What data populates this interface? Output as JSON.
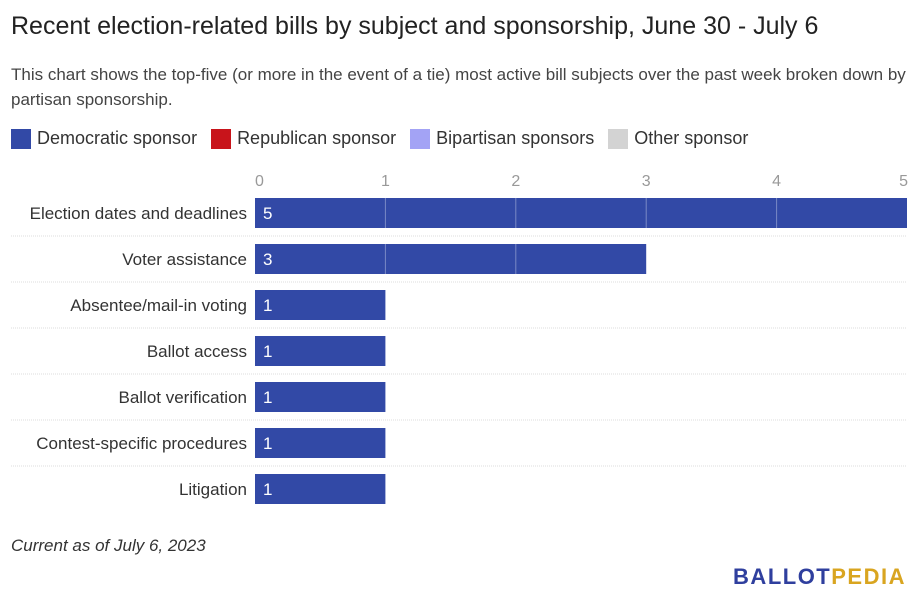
{
  "title": "Recent election-related bills by subject and sponsorship, June 30 - July 6",
  "subtitle": "This chart shows the top-five (or more in the event of a tie) most active bill subjects over the past week broken down by partisan sponsorship.",
  "legend": [
    {
      "label": "Democratic sponsor",
      "color": "#3249a6"
    },
    {
      "label": "Republican sponsor",
      "color": "#c8141b"
    },
    {
      "label": "Bipartisan sponsors",
      "color": "#a3a3f5"
    },
    {
      "label": "Other sponsor",
      "color": "#d3d3d3"
    }
  ],
  "note": "Current as of July 6, 2023",
  "logo": {
    "part1": "BALLOT",
    "part2": "PEDIA"
  },
  "chart_data": {
    "type": "bar",
    "orientation": "horizontal",
    "stacked": true,
    "categories": [
      "Election dates and deadlines",
      "Voter assistance",
      "Absentee/mail-in voting",
      "Ballot access",
      "Ballot verification",
      "Contest-specific procedures",
      "Litigation"
    ],
    "series": [
      {
        "name": "Democratic sponsor",
        "color": "#3249a6",
        "values": [
          5,
          3,
          1,
          1,
          1,
          1,
          1
        ]
      },
      {
        "name": "Republican sponsor",
        "color": "#c8141b",
        "values": [
          0,
          0,
          0,
          0,
          0,
          0,
          0
        ]
      },
      {
        "name": "Bipartisan sponsors",
        "color": "#a3a3f5",
        "values": [
          0,
          0,
          0,
          0,
          0,
          0,
          0
        ]
      },
      {
        "name": "Other sponsor",
        "color": "#d3d3d3",
        "values": [
          0,
          0,
          0,
          0,
          0,
          0,
          0
        ]
      }
    ],
    "xlim": [
      0,
      5
    ],
    "xticks": [
      0,
      1,
      2,
      3,
      4,
      5
    ],
    "grid": true,
    "legend_position": "top-left"
  }
}
